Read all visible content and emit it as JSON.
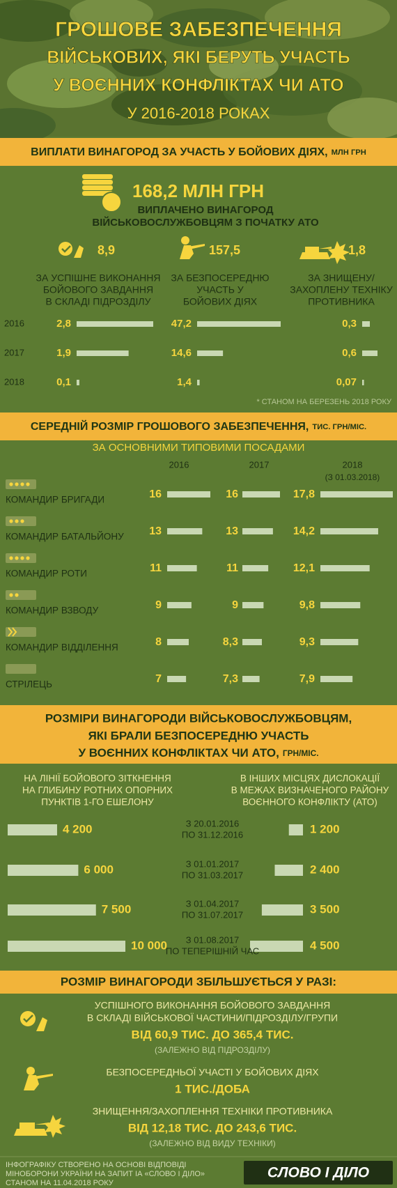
{
  "header": {
    "title_lines": [
      "ГРОШОВЕ ЗАБЕЗПЕЧЕННЯ",
      "ВІЙСЬКОВИХ, ЯКІ БЕРУТЬ УЧАСТЬ",
      "У ВОЄННИХ КОНФЛІКТАХ ЧИ АТО"
    ],
    "subtitle": "У 2016-2018 РОКАХ"
  },
  "awards": {
    "heading": "ВИПЛАТИ ВИНАГОРОД ЗА УЧАСТЬ У БОЙОВИХ ДІЯХ,",
    "unit": "МЛН ГРН",
    "total": "168,2 МЛН ГРН",
    "total_caption_lines": [
      "ВИПЛАЧЕНО ВИНАГОРОД",
      "ВІЙСЬКОВОСЛУЖБОВЦЯМ З ПОЧАТКУ АТО"
    ],
    "years": [
      "2016",
      "2017",
      "2018"
    ],
    "groups": [
      {
        "total": "8,9",
        "caption_lines": [
          "ЗА УСПІШНЕ ВИКОНАННЯ",
          "БОЙОВОГО ЗАВДАННЯ",
          "В СКЛАДІ ПІДРОЗДІЛУ"
        ],
        "values": [
          {
            "value": 2.8,
            "label": "2,8"
          },
          {
            "value": 1.9,
            "label": "1,9"
          },
          {
            "value": 0.1,
            "label": "0,1"
          }
        ]
      },
      {
        "total": "157,5",
        "caption_lines": [
          "ЗА БЕЗПОСЕРЕДНЮ",
          "УЧАСТЬ У",
          "БОЙОВИХ ДІЯХ"
        ],
        "values": [
          {
            "value": 47.2,
            "label": "47,2"
          },
          {
            "value": 14.6,
            "label": "14,6"
          },
          {
            "value": 1.4,
            "label": "1,4"
          }
        ]
      },
      {
        "total": "1,8",
        "caption_lines": [
          "ЗА ЗНИЩЕНУ/",
          "ЗАХОПЛЕНУ ТЕХНІКУ",
          "ПРОТИВНИКА"
        ],
        "values": [
          {
            "value": 0.3,
            "label": "0,3"
          },
          {
            "value": 0.6,
            "label": "0,6"
          },
          {
            "value": 0.07,
            "label": "0,07"
          }
        ]
      }
    ],
    "note": "* СТАНОМ НА БЕРЕЗЕНЬ 2018 РОКУ"
  },
  "salaries": {
    "heading": "СЕРЕДНІЙ РОЗМІР ГРОШОВОГО ЗАБЕЗПЕЧЕННЯ,",
    "unit": "ТИС. ГРН/МІС.",
    "subheading": "ЗА ОСНОВНИМИ ТИПОВИМИ ПОСАДАМИ",
    "years": [
      "2016",
      "2017",
      "2018"
    ],
    "year_note": "(З 01.03.2018)",
    "rows": [
      {
        "position": "КОМАНДИР БРИГАДИ",
        "values": [
          16,
          16,
          {
            "value": 17.8,
            "label": "17,8"
          }
        ]
      },
      {
        "position": "КОМАНДИР БАТАЛЬЙОНУ",
        "values": [
          13,
          13,
          {
            "value": 14.2,
            "label": "14,2"
          }
        ]
      },
      {
        "position": "КОМАНДИР РОТИ",
        "values": [
          11,
          11,
          {
            "value": 12.1,
            "label": "12,1"
          }
        ]
      },
      {
        "position": "КОМАНДИР ВЗВОДУ",
        "values": [
          9,
          9,
          {
            "value": 9.8,
            "label": "9,8"
          }
        ]
      },
      {
        "position": "КОМАНДИР ВІДДІЛЕННЯ",
        "values": [
          8,
          {
            "value": 8.3,
            "label": "8,3"
          },
          {
            "value": 9.3,
            "label": "9,3"
          }
        ]
      },
      {
        "position": "СТРІЛЕЦЬ",
        "values": [
          7,
          {
            "value": 7.3,
            "label": "7,3"
          },
          {
            "value": 7.9,
            "label": "7,9"
          }
        ]
      }
    ]
  },
  "rewards": {
    "heading_lines": [
      "РОЗМІРИ ВИНАГОРОДИ ВІЙСЬКОВОСЛУЖБОВЦЯМ,",
      "ЯКІ БРАЛИ БЕЗПОСЕРЕДНЮ УЧАСТЬ",
      "У ВОЄННИХ КОНФЛІКТАХ ЧИ АТО,"
    ],
    "unit": "ГРН/МІС.",
    "left_header_lines": [
      "НА ЛІНІЇ БОЙОВОГО ЗІТКНЕННЯ",
      "НА ГЛИБИНУ РОТНИХ ОПОРНИХ",
      "ПУНКТІВ 1-ГО ЕШЕЛОНУ"
    ],
    "right_header_lines": [
      "В ІНШИХ МІСЦЯХ ДИСЛОКАЦІЇ",
      "В МЕЖАХ ВИЗНАЧЕНОГО РАЙОНУ",
      "ВОЄННОГО КОНФЛІКТУ (АТО)"
    ],
    "rows": [
      {
        "period_lines": [
          "З 20.01.2016",
          "ПО 31.12.2016"
        ],
        "left": {
          "value": 4200,
          "label": "4 200"
        },
        "right": {
          "value": 1200,
          "label": "1 200"
        }
      },
      {
        "period_lines": [
          "З 01.01.2017",
          "ПО 31.03.2017"
        ],
        "left": {
          "value": 6000,
          "label": "6 000"
        },
        "right": {
          "value": 2400,
          "label": "2 400"
        }
      },
      {
        "period_lines": [
          "З 01.04.2017",
          "ПО 31.07.2017"
        ],
        "left": {
          "value": 7500,
          "label": "7 500"
        },
        "right": {
          "value": 3500,
          "label": "3 500"
        }
      },
      {
        "period_lines": [
          "З 01.08.2017",
          "ПО ТЕПЕРІШНІЙ ЧАС"
        ],
        "left": {
          "value": 10000,
          "label": "10 000"
        },
        "right": {
          "value": 4500,
          "label": "4 500"
        }
      }
    ]
  },
  "increase": {
    "heading": "РОЗМІР ВИНАГОРОДИ ЗБІЛЬШУЄТЬСЯ У РАЗІ:",
    "items": [
      {
        "condition_lines": [
          "УСПІШНОГО ВИКОНАННЯ БОЙОВОГО ЗАВДАННЯ",
          "В СКЛАДІ ВІЙСЬКОВОЇ ЧАСТИНИ/ПІДРОЗДІЛУ/ГРУПИ"
        ],
        "amount": "ВІД 60,9 ТИС. ДО 365,4 ТИС.",
        "note": "(ЗАЛЕЖНО ВІД ПІДРОЗДІЛУ)"
      },
      {
        "condition_lines": [
          "БЕЗПОСЕРЕДНЬОЇ УЧАСТІ У БОЙОВИХ ДІЯХ"
        ],
        "amount": "1 ТИС./ДОБА"
      },
      {
        "condition_lines": [
          "ЗНИЩЕННЯ/ЗАХОПЛЕННЯ ТЕХНІКИ ПРОТИВНИКА"
        ],
        "amount": "ВІД 12,18 ТИС. ДО 243,6 ТИС.",
        "note": "(ЗАЛЕЖНО ВІД ВИДУ ТЕХНІКИ)"
      }
    ]
  },
  "footer": {
    "source_lines": [
      "ІНФОГРАФІКУ СТВОРЕНО НА ОСНОВІ ВІДПОВІДІ",
      "МІНОБОРОНИ УКРАЇНИ НА ЗАПИТ ІА «СЛОВО І ДІЛО»",
      "СТАНОМ НА 11.04.2018 РОКУ"
    ],
    "logo": "СЛОВО І ДІЛО"
  }
}
